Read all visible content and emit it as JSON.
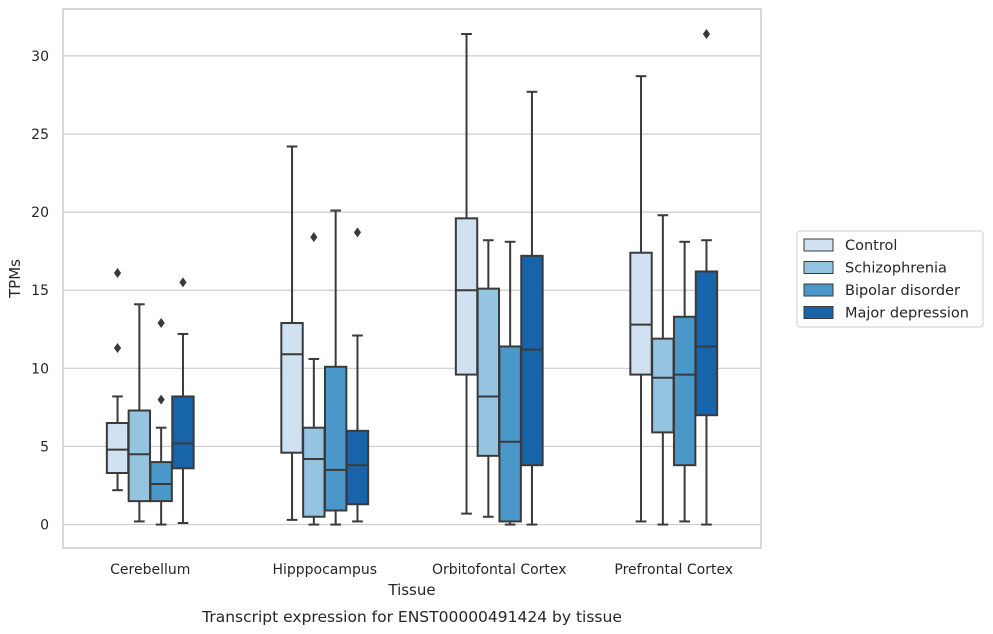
{
  "caption": "Transcript expression for ENST00000491424 by tissue",
  "chart_data": {
    "type": "box",
    "xlabel": "Tissue",
    "ylabel": "TPMs",
    "ylim": [
      -1.5,
      33
    ],
    "yticks": [
      0,
      5,
      10,
      15,
      20,
      25,
      30
    ],
    "grid": "horizontal",
    "legend_position": "right",
    "categories": [
      "Cerebellum",
      "Hipppocampus",
      "Orbitofontal Cortex",
      "Prefrontal Cortex"
    ],
    "series": [
      {
        "name": "Control",
        "color": "#d0e1f2",
        "boxes": [
          {
            "whisker_low": 2.2,
            "q1": 3.3,
            "median": 4.8,
            "q3": 6.5,
            "whisker_high": 8.2,
            "outliers": [
              11.3,
              16.1
            ]
          },
          {
            "whisker_low": 0.3,
            "q1": 4.6,
            "median": 10.9,
            "q3": 12.9,
            "whisker_high": 24.2,
            "outliers": []
          },
          {
            "whisker_low": 0.7,
            "q1": 9.6,
            "median": 15.0,
            "q3": 19.6,
            "whisker_high": 31.4,
            "outliers": []
          },
          {
            "whisker_low": 0.2,
            "q1": 9.6,
            "median": 12.8,
            "q3": 17.4,
            "whisker_high": 28.7,
            "outliers": []
          }
        ]
      },
      {
        "name": "Schizophrenia",
        "color": "#94c4df",
        "boxes": [
          {
            "whisker_low": 0.2,
            "q1": 1.5,
            "median": 4.5,
            "q3": 7.3,
            "whisker_high": 14.1,
            "outliers": []
          },
          {
            "whisker_low": 0.0,
            "q1": 0.5,
            "median": 4.2,
            "q3": 6.2,
            "whisker_high": 10.6,
            "outliers": [
              18.4
            ]
          },
          {
            "whisker_low": 0.5,
            "q1": 4.4,
            "median": 8.2,
            "q3": 15.1,
            "whisker_high": 18.2,
            "outliers": []
          },
          {
            "whisker_low": 0.0,
            "q1": 5.9,
            "median": 9.4,
            "q3": 11.9,
            "whisker_high": 19.8,
            "outliers": []
          }
        ]
      },
      {
        "name": "Bipolar disorder",
        "color": "#4a98c9",
        "boxes": [
          {
            "whisker_low": 0.0,
            "q1": 1.5,
            "median": 2.6,
            "q3": 4.0,
            "whisker_high": 6.2,
            "outliers": [
              8.0,
              12.9
            ]
          },
          {
            "whisker_low": 0.0,
            "q1": 0.9,
            "median": 3.5,
            "q3": 10.1,
            "whisker_high": 20.1,
            "outliers": []
          },
          {
            "whisker_low": 0.0,
            "q1": 0.2,
            "median": 5.3,
            "q3": 11.4,
            "whisker_high": 18.1,
            "outliers": []
          },
          {
            "whisker_low": 0.2,
            "q1": 3.8,
            "median": 9.6,
            "q3": 13.3,
            "whisker_high": 18.1,
            "outliers": []
          }
        ]
      },
      {
        "name": "Major depression",
        "color": "#1764ab",
        "boxes": [
          {
            "whisker_low": 0.1,
            "q1": 3.6,
            "median": 5.2,
            "q3": 8.2,
            "whisker_high": 12.2,
            "outliers": [
              15.5
            ]
          },
          {
            "whisker_low": 0.2,
            "q1": 1.3,
            "median": 3.8,
            "q3": 6.0,
            "whisker_high": 12.1,
            "outliers": [
              18.7
            ]
          },
          {
            "whisker_low": 0.0,
            "q1": 3.8,
            "median": 11.2,
            "q3": 17.2,
            "whisker_high": 27.7,
            "outliers": []
          },
          {
            "whisker_low": 0.0,
            "q1": 7.0,
            "median": 11.4,
            "q3": 16.2,
            "whisker_high": 18.2,
            "outliers": [
              31.4
            ]
          }
        ]
      }
    ]
  }
}
